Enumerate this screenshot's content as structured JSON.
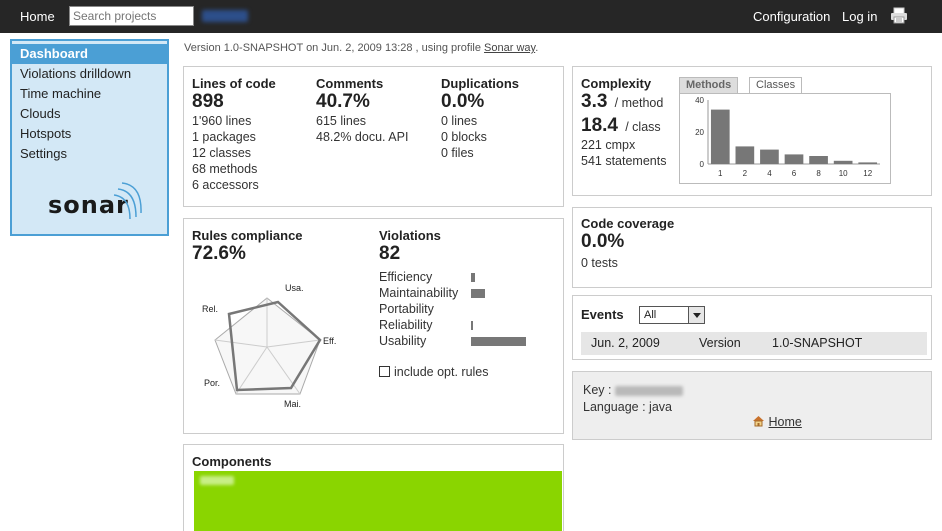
{
  "topbar": {
    "home": "Home",
    "search_placeholder": "Search projects",
    "configuration": "Configuration",
    "login": "Log in"
  },
  "sidebar": {
    "items": [
      "Dashboard",
      "Violations drilldown",
      "Time machine",
      "Clouds",
      "Hotspots",
      "Settings"
    ],
    "logo": "sonar"
  },
  "version_line": {
    "prefix": "Version 1.0-SNAPSHOT on Jun. 2, 2009 13:28 , using profile ",
    "profile": "Sonar way",
    "suffix": "."
  },
  "size": {
    "loc_label": "Lines of code",
    "loc_value": "898",
    "loc_lines": [
      "1'960 lines",
      "1 packages",
      "12 classes",
      "68 methods",
      "6 accessors"
    ],
    "comments_label": "Comments",
    "comments_value": "40.7%",
    "comments_lines": [
      "615 lines",
      "48.2% docu. API"
    ],
    "dup_label": "Duplications",
    "dup_value": "0.0%",
    "dup_lines": [
      "0 lines",
      "0 blocks",
      "0 files"
    ]
  },
  "complexity": {
    "label": "Complexity",
    "per_method_value": "3.3",
    "per_method_unit": "/ method",
    "per_class_value": "18.4",
    "per_class_unit": "/ class",
    "lines": [
      "221 cmpx",
      "541 statements"
    ],
    "tabs": [
      "Methods",
      "Classes"
    ]
  },
  "chart_data": {
    "type": "bar",
    "categories": [
      "1",
      "2",
      "4",
      "6",
      "8",
      "10",
      "12"
    ],
    "values": [
      34,
      11,
      9,
      6,
      5,
      2,
      1
    ],
    "ylim": [
      0,
      40
    ],
    "yticks": [
      "0",
      "20",
      "40"
    ],
    "grid": false
  },
  "rules": {
    "label": "Rules compliance",
    "value": "72.6%",
    "radar_axes": [
      "Usa.",
      "Eff.",
      "Mai.",
      "Por.",
      "Rel."
    ]
  },
  "violations": {
    "label": "Violations",
    "value": "82",
    "categories": [
      {
        "name": "Efficiency",
        "share": 0.08
      },
      {
        "name": "Maintainability",
        "share": 0.25
      },
      {
        "name": "Portability",
        "share": 0.0
      },
      {
        "name": "Reliability",
        "share": 0.02
      },
      {
        "name": "Usability",
        "share": 1.0
      }
    ],
    "checkbox_label": "include opt. rules"
  },
  "coverage": {
    "label": "Code coverage",
    "value": "0.0%",
    "tests": "0 tests"
  },
  "events": {
    "label": "Events",
    "filter_value": "All",
    "rows": [
      {
        "date": "Jun. 2, 2009",
        "type": "Version",
        "name": "1.0-SNAPSHOT"
      }
    ]
  },
  "project": {
    "key_label": "Key :",
    "language_label": "Language :",
    "language": "java",
    "home_link": "Home"
  },
  "components": {
    "label": "Components"
  }
}
